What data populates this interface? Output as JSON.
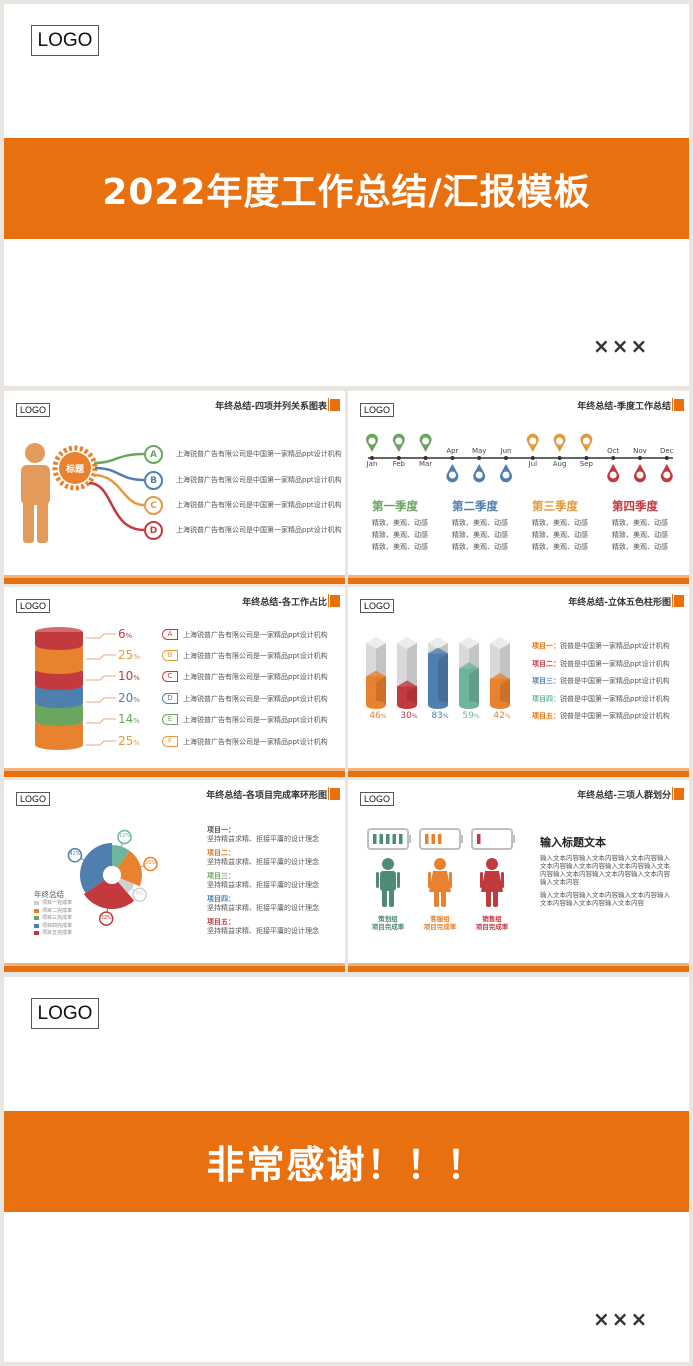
{
  "cover": {
    "logo": "LOGO",
    "title": "2022年度工作总结/汇报模板",
    "author": "×××"
  },
  "slide1": {
    "logo": "LOGO",
    "title": "年终总结-四项并列关系图表",
    "center_label": "标题",
    "items": [
      {
        "letter": "A",
        "text": "上海锐普广告有限公司是中国第一家精品ppt设计机构",
        "color": "#6aa65e"
      },
      {
        "letter": "B",
        "text": "上海锐普广告有限公司是中国第一家精品ppt设计机构",
        "color": "#4f7fae"
      },
      {
        "letter": "C",
        "text": "上海锐普广告有限公司是中国第一家精品ppt设计机构",
        "color": "#e39a3e"
      },
      {
        "letter": "D",
        "text": "上海锐普广告有限公司是中国第一家精品ppt设计机构",
        "color": "#c23a3e"
      }
    ]
  },
  "slide2": {
    "logo": "LOGO",
    "title": "年终总结-季度工作总结",
    "months": [
      "Jan",
      "Feb",
      "Mar",
      "Apr",
      "May",
      "Jun",
      "Jul",
      "Aug",
      "Sep",
      "Oct",
      "Nov",
      "Dec"
    ],
    "pin_colors": [
      "#6aa65e",
      "#6aa65e",
      "#6aa65e",
      "#4f7fae",
      "#4f7fae",
      "#4f7fae",
      "#e39a3e",
      "#e39a3e",
      "#e39a3e",
      "#c23a3e",
      "#c23a3e",
      "#c23a3e"
    ],
    "quarters": [
      {
        "name": "第一季度",
        "color": "#6aa65e",
        "lines": [
          "精致、美观、动感",
          "精致、美观、动感",
          "精致、美观、动感"
        ]
      },
      {
        "name": "第二季度",
        "color": "#4f7fae",
        "lines": [
          "精致、美观、动感",
          "精致、美观、动感",
          "精致、美观、动感"
        ]
      },
      {
        "name": "第三季度",
        "color": "#e39a3e",
        "lines": [
          "精致、美观、动感",
          "精致、美观、动感",
          "精致、美观、动感"
        ]
      },
      {
        "name": "第四季度",
        "color": "#c23a3e",
        "lines": [
          "精致、美观、动感",
          "精致、美观、动感",
          "精致、美观、动感"
        ]
      }
    ]
  },
  "slide3": {
    "logo": "LOGO",
    "title": "年终总结-各工作占比",
    "rows": [
      {
        "value": "6",
        "unit": "%",
        "letter": "A",
        "text": "上海锐普广告有限公司是一家精品ppt设计机构",
        "color": "#c23a3e"
      },
      {
        "value": "25",
        "unit": "%",
        "letter": "B",
        "text": "上海锐普广告有限公司是一家精品ppt设计机构",
        "color": "#e39a3e"
      },
      {
        "value": "10",
        "unit": "%",
        "letter": "C",
        "text": "上海锐普广告有限公司是一家精品ppt设计机构",
        "color": "#c23a3e"
      },
      {
        "value": "20",
        "unit": "%",
        "letter": "D",
        "text": "上海锐普广告有限公司是一家精品ppt设计机构",
        "color": "#4f7fae"
      },
      {
        "value": "14",
        "unit": "%",
        "letter": "E",
        "text": "上海锐普广告有限公司是一家精品ppt设计机构",
        "color": "#6aa65e"
      },
      {
        "value": "25",
        "unit": "%",
        "letter": "F",
        "text": "上海锐普广告有限公司是一家精品ppt设计机构",
        "color": "#e39a3e"
      }
    ]
  },
  "slide4": {
    "logo": "LOGO",
    "title": "年终总结-立体五色柱形图",
    "bars": [
      {
        "value": "46",
        "unit": "%",
        "color": "#e8822e"
      },
      {
        "value": "30",
        "unit": "%",
        "color": "#c23a3e"
      },
      {
        "value": "83",
        "unit": "%",
        "color": "#4f7fae"
      },
      {
        "value": "59",
        "unit": "%",
        "color": "#6fb49c"
      },
      {
        "value": "42",
        "unit": "%",
        "color": "#e8822e"
      }
    ],
    "items": [
      {
        "label": "项目一：",
        "text": "锐普是中国第一家精品ppt设计机构",
        "color": "#e8700f"
      },
      {
        "label": "项目二：",
        "text": "锐普是中国第一家精品ppt设计机构",
        "color": "#c23a3e"
      },
      {
        "label": "项目三：",
        "text": "锐普是中国第一家精品ppt设计机构",
        "color": "#4f7fae"
      },
      {
        "label": "项目四：",
        "text": "锐普是中国第一家精品ppt设计机构",
        "color": "#6fb49c"
      },
      {
        "label": "项目五：",
        "text": "锐普是中国第一家精品ppt设计机构",
        "color": "#e8700f"
      }
    ]
  },
  "slide5": {
    "logo": "LOGO",
    "title": "年终总结-各项目完成率环形图",
    "legend_title": "年终总结",
    "legend": [
      "项目一完成率",
      "项目二完成率",
      "项目三完成率",
      "项目四完成率",
      "项目五完成率"
    ],
    "donut": [
      {
        "label": "12%",
        "value": 12,
        "color": "#6fb49c"
      },
      {
        "label": "25%",
        "value": 25,
        "color": "#e8822e"
      },
      {
        "label": "9%",
        "value": 9,
        "color": "#cfcfcf"
      },
      {
        "label": "32%",
        "value": 32,
        "color": "#c23a3e"
      },
      {
        "label": "41%",
        "value": 41,
        "color": "#4f7fae"
      }
    ],
    "items": [
      {
        "label": "项目一：",
        "text": "坚持精益求精、拒接平庸的设计理念",
        "color": "#555555"
      },
      {
        "label": "项目二：",
        "text": "坚持精益求精、拒接平庸的设计理念",
        "color": "#e8700f"
      },
      {
        "label": "项目三：",
        "text": "坚持精益求精、拒接平庸的设计理念",
        "color": "#6aa65e"
      },
      {
        "label": "项目四：",
        "text": "坚持精益求精、拒接平庸的设计理念",
        "color": "#4f7fae"
      },
      {
        "label": "项目五：",
        "text": "坚持精益求精、拒接平庸的设计理念",
        "color": "#c23a3e"
      }
    ]
  },
  "slide6": {
    "logo": "LOGO",
    "title": "年终总结-三项人群划分",
    "groups": [
      {
        "name": "策划组",
        "sub": "项目完成率",
        "color": "#4f8a79",
        "bars": 5
      },
      {
        "name": "客服组",
        "sub": "项目完成率",
        "color": "#e8822e",
        "bars": 3
      },
      {
        "name": "销售组",
        "sub": "项目完成率",
        "color": "#c23a3e",
        "bars": 1
      }
    ],
    "heading": "输入标题文本",
    "para1": "输入文本内容输入文本内容输入文本内容输入文本内容输入文本内容输入文本内容输入文本内容输入文本内容输入文本内容输入文本内容输入文本内容",
    "para2": "输入文本内容输入文本内容输入文本内容输入文本内容输入文本内容输入文本内容"
  },
  "ending": {
    "logo": "LOGO",
    "title": "非常感谢！！！",
    "author": "×××"
  }
}
